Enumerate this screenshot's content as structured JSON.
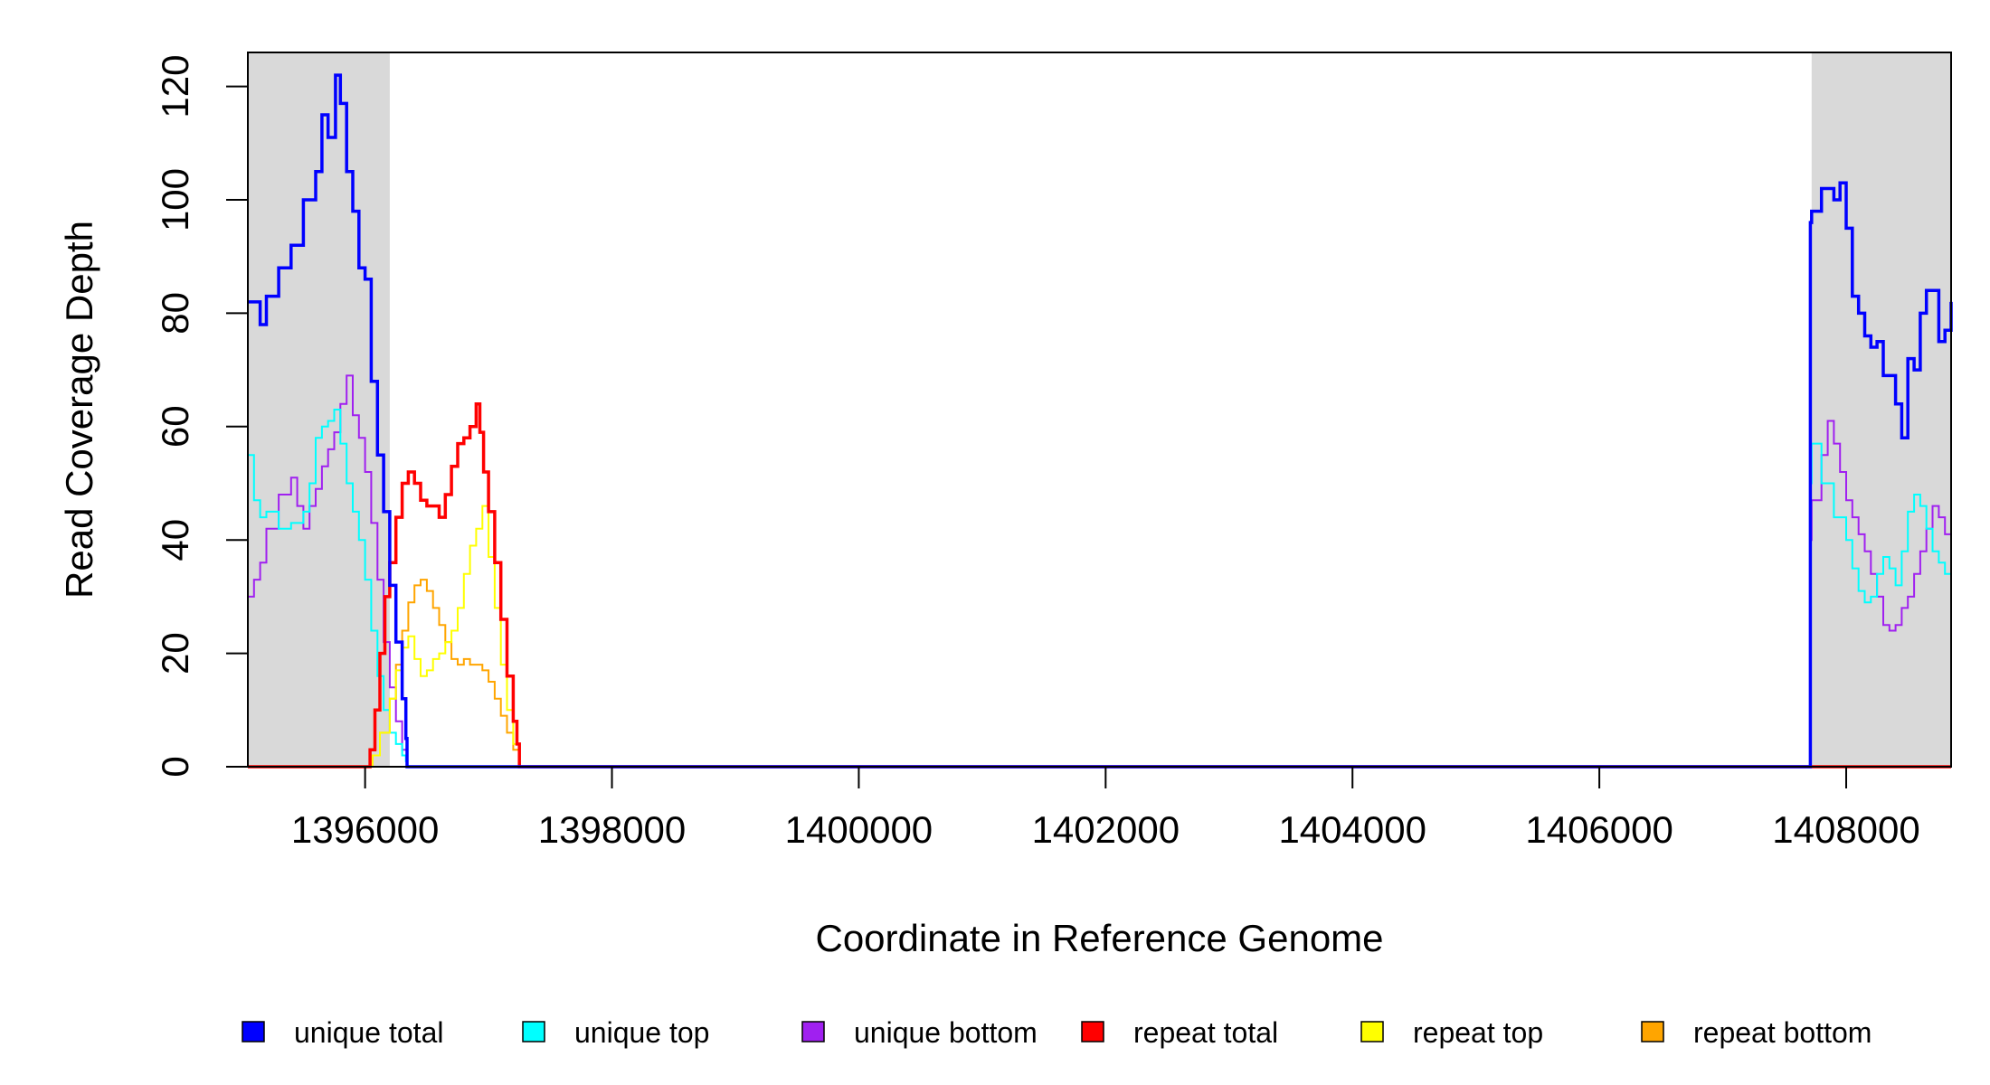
{
  "chart_data": {
    "type": "line",
    "title": "",
    "xlabel": "Coordinate in Reference Genome",
    "ylabel": "Read Coverage Depth",
    "xlim": [
      1395050,
      1408850
    ],
    "ylim": [
      0,
      126
    ],
    "x_ticks": [
      "1396000",
      "1398000",
      "1400000",
      "1402000",
      "1404000",
      "1406000",
      "1408000"
    ],
    "y_ticks": [
      "0",
      "20",
      "40",
      "60",
      "80",
      "100",
      "120"
    ],
    "grid": false,
    "legend_position": "bottom",
    "shaded_regions": [
      [
        1395050,
        1396200
      ],
      [
        1407720,
        1408850
      ]
    ],
    "shade_color": "#d9d9d9",
    "series": [
      {
        "name": "unique total",
        "color": "#0000ff",
        "x": [
          1395050,
          1395150,
          1395200,
          1395300,
          1395400,
          1395500,
          1395600,
          1395650,
          1395700,
          1395760,
          1395800,
          1395850,
          1395900,
          1395950,
          1396000,
          1396050,
          1396100,
          1396150,
          1396200,
          1396250,
          1396300,
          1396330,
          1396340,
          1397300,
          1407700,
          1407710,
          1407720,
          1407800,
          1407900,
          1407950,
          1408000,
          1408050,
          1408100,
          1408150,
          1408200,
          1408250,
          1408300,
          1408400,
          1408450,
          1408500,
          1408550,
          1408600,
          1408650,
          1408700,
          1408750,
          1408800,
          1408850
        ],
        "values": [
          82,
          78,
          83,
          88,
          92,
          100,
          105,
          115,
          111,
          122,
          117,
          105,
          98,
          88,
          86,
          68,
          55,
          45,
          32,
          22,
          12,
          5,
          0,
          0,
          0,
          96,
          98,
          102,
          100,
          103,
          95,
          83,
          80,
          76,
          74,
          75,
          69,
          64,
          58,
          72,
          70,
          80,
          84,
          84,
          75,
          77,
          82
        ]
      },
      {
        "name": "unique top",
        "color": "#00ffff",
        "x": [
          1395050,
          1395100,
          1395150,
          1395200,
          1395300,
          1395400,
          1395500,
          1395550,
          1395600,
          1395650,
          1395700,
          1395750,
          1395800,
          1395850,
          1395900,
          1395950,
          1396000,
          1396050,
          1396100,
          1396150,
          1396200,
          1396250,
          1396300,
          1396330,
          1396340,
          1397300,
          1407700,
          1407710,
          1407720,
          1407800,
          1407900,
          1408000,
          1408050,
          1408100,
          1408150,
          1408200,
          1408250,
          1408300,
          1408350,
          1408400,
          1408450,
          1408500,
          1408550,
          1408600,
          1408650,
          1408700,
          1408750,
          1408800,
          1408850
        ],
        "values": [
          55,
          47,
          44,
          45,
          42,
          43,
          45,
          50,
          58,
          60,
          61,
          63,
          57,
          50,
          45,
          40,
          33,
          24,
          16,
          10,
          6,
          4,
          2,
          1,
          0,
          0,
          0,
          50,
          57,
          50,
          44,
          40,
          35,
          31,
          29,
          30,
          34,
          37,
          35,
          32,
          38,
          45,
          48,
          46,
          42,
          38,
          36,
          34,
          33
        ]
      },
      {
        "name": "unique bottom",
        "color": "#a020f0",
        "x": [
          1395050,
          1395100,
          1395150,
          1395200,
          1395300,
          1395400,
          1395450,
          1395500,
          1395550,
          1395600,
          1395650,
          1395700,
          1395750,
          1395800,
          1395850,
          1395900,
          1395950,
          1396000,
          1396050,
          1396100,
          1396150,
          1396200,
          1396250,
          1396300,
          1396340,
          1397300,
          1407700,
          1407710,
          1407720,
          1407800,
          1407850,
          1407900,
          1407950,
          1408000,
          1408050,
          1408100,
          1408150,
          1408200,
          1408250,
          1408300,
          1408350,
          1408400,
          1408450,
          1408500,
          1408550,
          1408600,
          1408650,
          1408700,
          1408750,
          1408800,
          1408850
        ],
        "values": [
          30,
          33,
          36,
          42,
          48,
          51,
          46,
          42,
          46,
          49,
          53,
          56,
          59,
          64,
          69,
          62,
          58,
          52,
          43,
          33,
          22,
          14,
          8,
          3,
          0,
          0,
          0,
          40,
          47,
          55,
          61,
          57,
          52,
          47,
          44,
          41,
          38,
          34,
          30,
          25,
          24,
          25,
          28,
          30,
          34,
          38,
          42,
          46,
          44,
          41,
          42
        ]
      },
      {
        "name": "repeat total",
        "color": "#ff0000",
        "x": [
          1395050,
          1396000,
          1396040,
          1396080,
          1396120,
          1396160,
          1396200,
          1396250,
          1396300,
          1396350,
          1396400,
          1396450,
          1396500,
          1396550,
          1396600,
          1396650,
          1396700,
          1396750,
          1396800,
          1396850,
          1396900,
          1396930,
          1396960,
          1397000,
          1397050,
          1397100,
          1397150,
          1397200,
          1397230,
          1397250,
          1407700,
          1408850
        ],
        "values": [
          0,
          0,
          3,
          10,
          20,
          30,
          36,
          44,
          50,
          52,
          50,
          47,
          46,
          46,
          44,
          48,
          53,
          57,
          58,
          60,
          64,
          59,
          52,
          45,
          36,
          26,
          16,
          8,
          4,
          0,
          0,
          0
        ]
      },
      {
        "name": "repeat top",
        "color": "#ffff00",
        "x": [
          1395050,
          1396000,
          1396060,
          1396120,
          1396200,
          1396250,
          1396300,
          1396350,
          1396400,
          1396450,
          1396500,
          1396550,
          1396600,
          1396650,
          1396700,
          1396750,
          1396800,
          1396850,
          1396900,
          1396950,
          1397000,
          1397050,
          1397100,
          1397150,
          1397200,
          1397250,
          1408850
        ],
        "values": [
          0,
          0,
          2,
          6,
          12,
          17,
          21,
          23,
          19,
          16,
          17,
          19,
          20,
          22,
          24,
          28,
          34,
          39,
          42,
          46,
          37,
          28,
          18,
          10,
          4,
          0,
          0
        ]
      },
      {
        "name": "repeat bottom",
        "color": "#ffa500",
        "x": [
          1395050,
          1396000,
          1396060,
          1396120,
          1396200,
          1396250,
          1396300,
          1396350,
          1396400,
          1396450,
          1396500,
          1396550,
          1396600,
          1396650,
          1396700,
          1396750,
          1396800,
          1396850,
          1396900,
          1396950,
          1397000,
          1397050,
          1397100,
          1397150,
          1397200,
          1397250,
          1408850
        ],
        "values": [
          0,
          0,
          2,
          6,
          12,
          18,
          24,
          29,
          32,
          33,
          31,
          28,
          25,
          22,
          19,
          18,
          19,
          18,
          18,
          17,
          15,
          12,
          9,
          6,
          3,
          0,
          0
        ]
      }
    ]
  }
}
